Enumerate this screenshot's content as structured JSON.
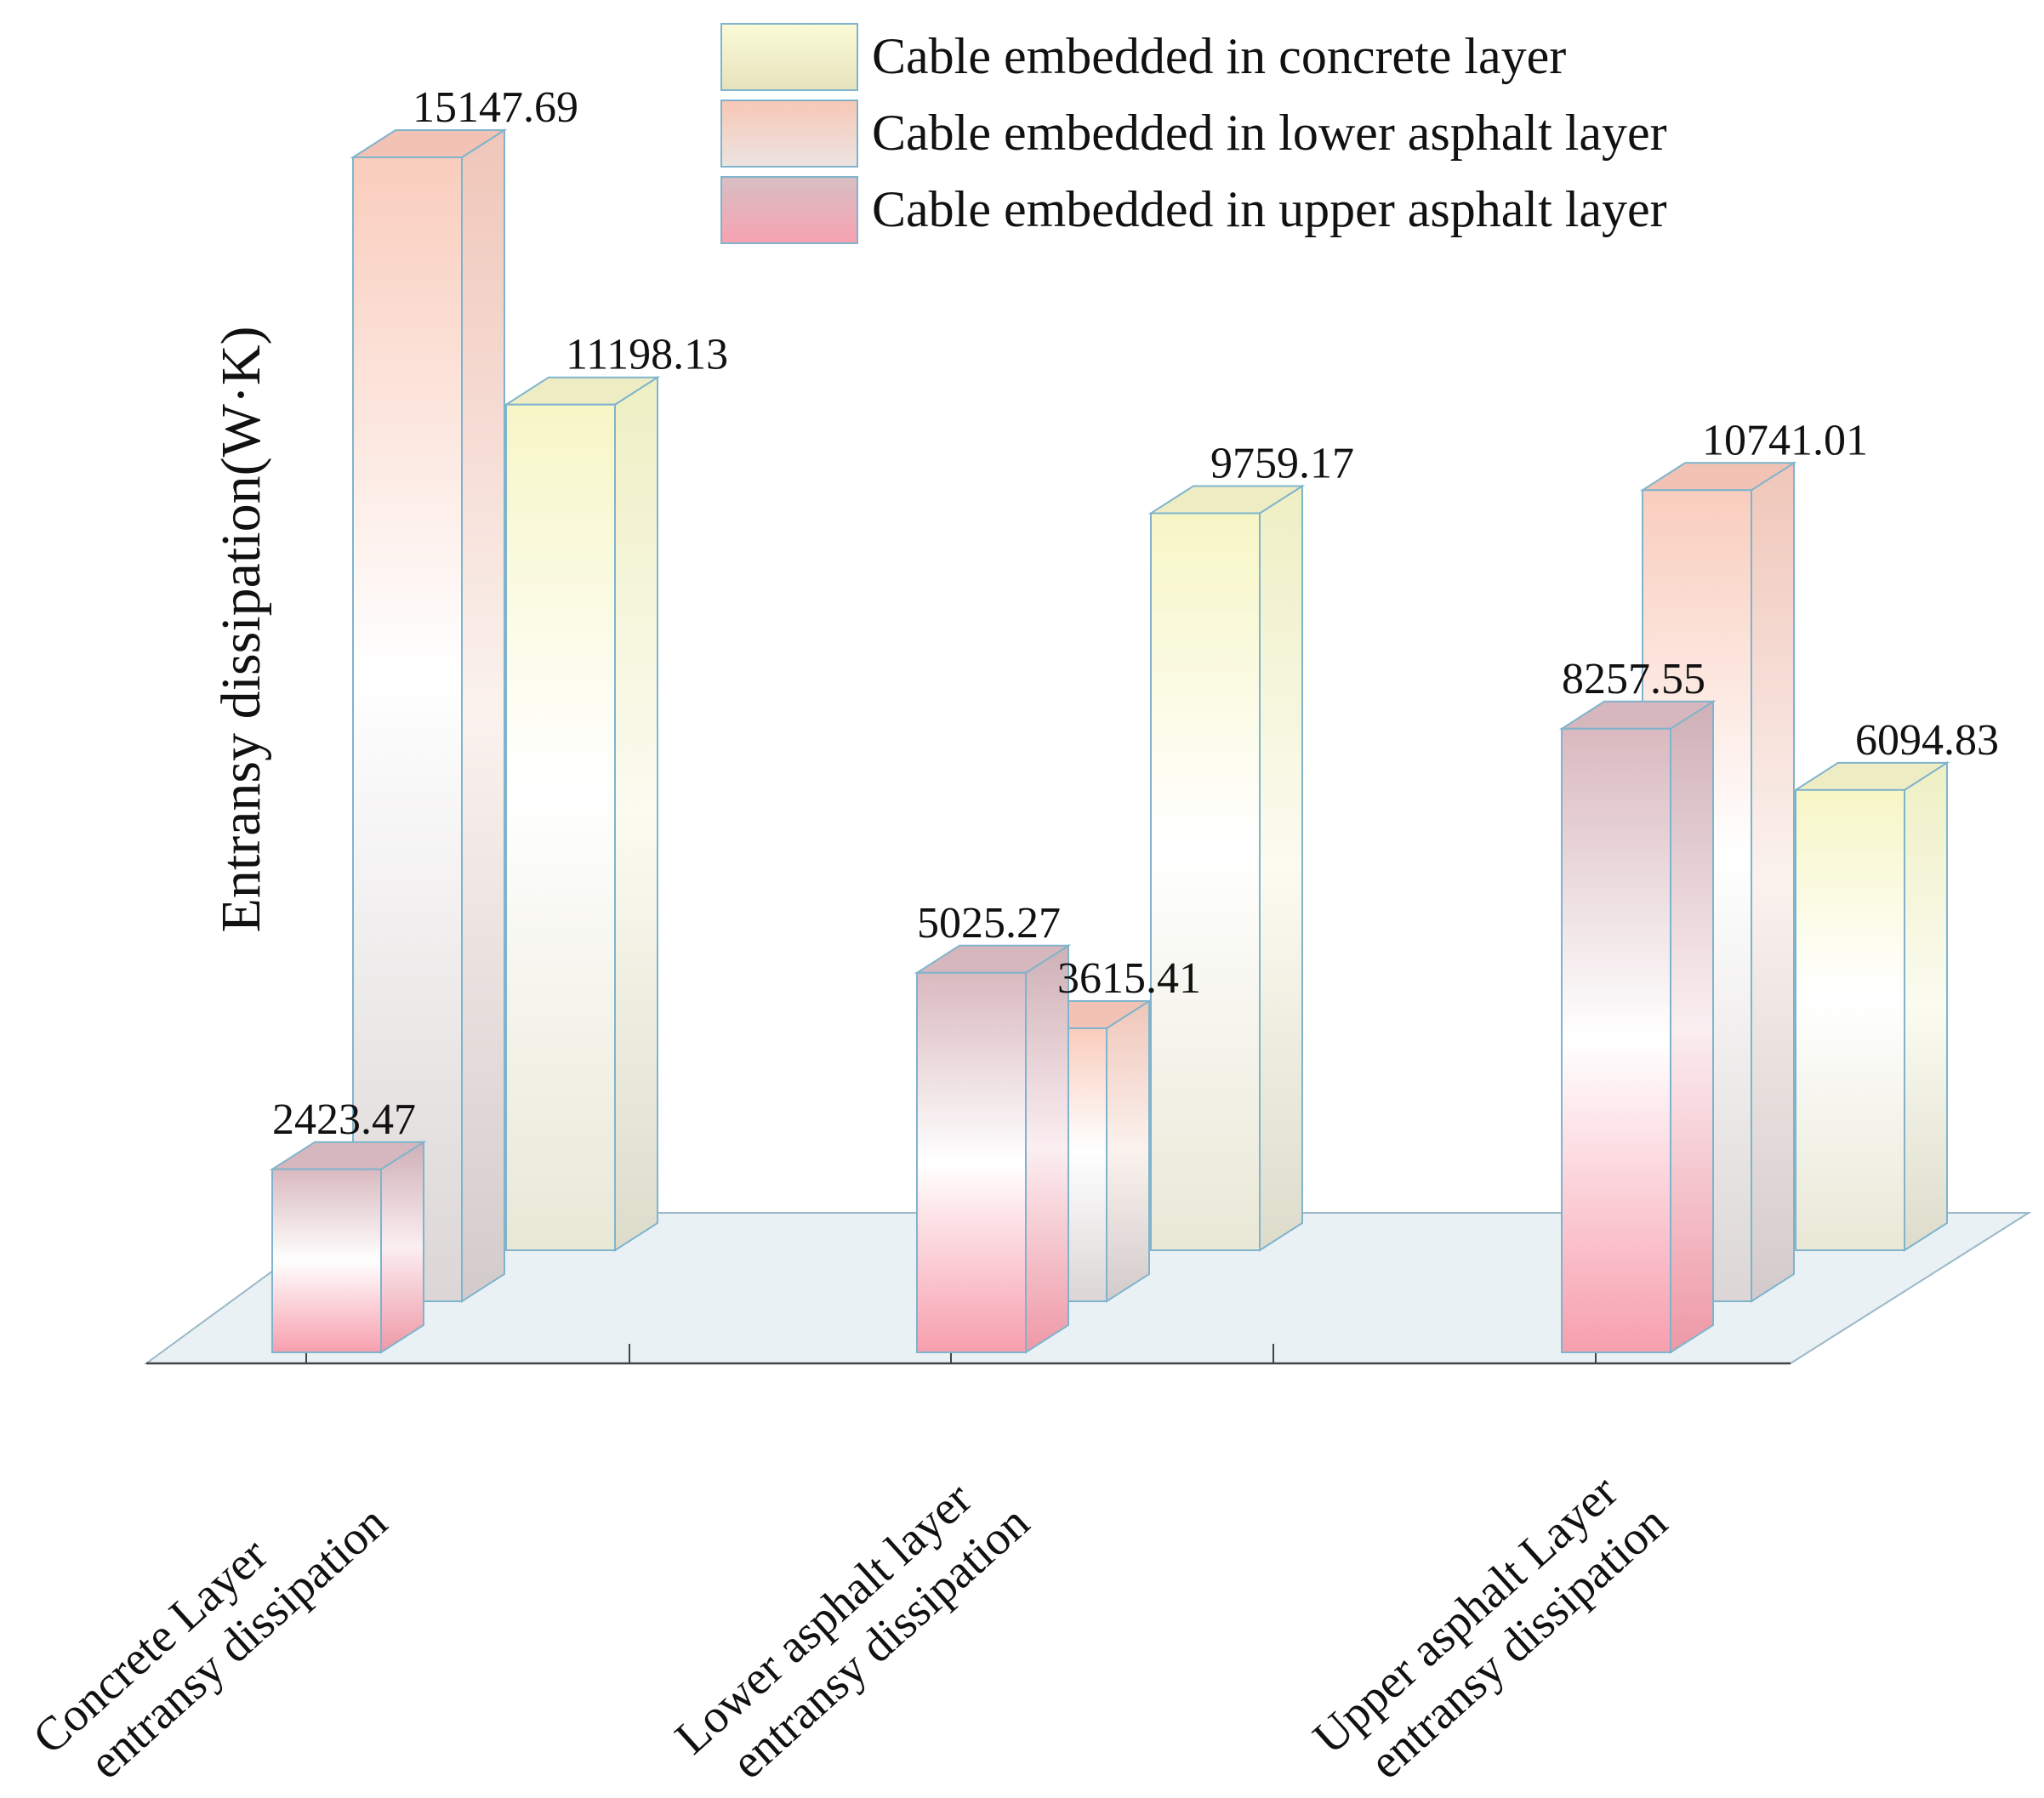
{
  "chart_data": {
    "type": "bar",
    "title": "",
    "ylabel": "Entransy dissipation(W·K)",
    "xlabel": "",
    "ylim": [
      0,
      16000
    ],
    "categories": [
      [
        "Concrete Layer",
        "entransy dissipation"
      ],
      [
        "Lower asphalt layer",
        "entransy dissipation"
      ],
      [
        "Upper asphalt Layer",
        "entransy dissipation"
      ]
    ],
    "series": [
      {
        "name": "Cable embedded in upper asphalt layer",
        "values": [
          2423.47,
          5025.27,
          8257.55
        ],
        "value_labels": [
          "2423.47",
          "5025.27",
          "8257.55"
        ]
      },
      {
        "name": "Cable embedded in lower asphalt layer",
        "values": [
          15147.69,
          3615.41,
          10741.01
        ],
        "value_labels": [
          "15147.69",
          "3615.41",
          "10741.01"
        ]
      },
      {
        "name": "Cable embedded in concrete layer",
        "values": [
          11198.13,
          9759.17,
          6094.83
        ],
        "value_labels": [
          "11198.13",
          "9759.17",
          "6094.83"
        ]
      }
    ],
    "legend": {
      "position": "top-right",
      "order": [
        "Cable embedded in concrete layer",
        "Cable embedded in lower asphalt layer",
        "Cable embedded in upper asphalt layer"
      ]
    },
    "colors": {
      "concrete": "#f7f3c2",
      "lower": "#f9ccbc",
      "upper": "#f6a4b2",
      "edge": "#7fb4cc",
      "floor": "#e9f1f5"
    }
  }
}
